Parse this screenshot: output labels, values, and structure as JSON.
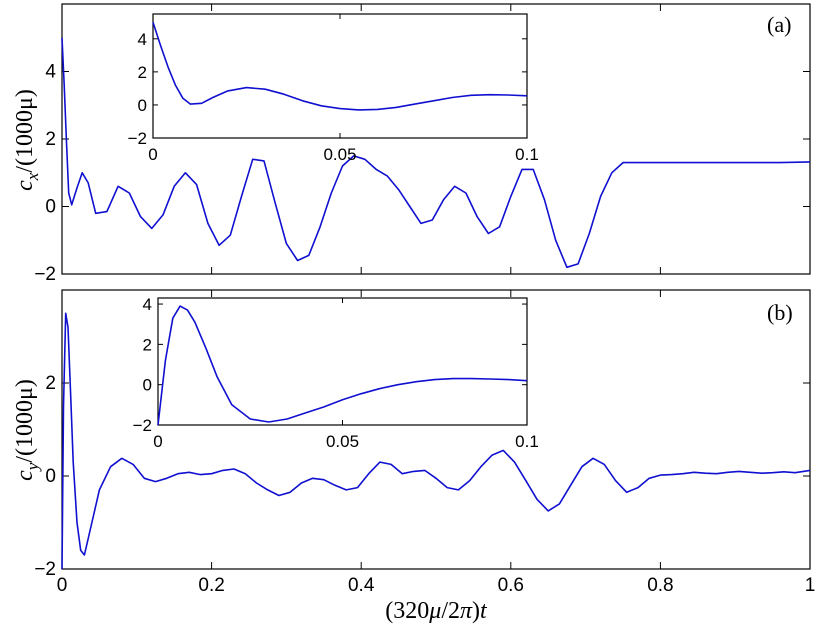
{
  "chart_data": [
    {
      "panel": "(a)",
      "type": "line",
      "ylabel_html": "c<tspan font-style='italic'>x</tspan>",
      "ylabel_parts": {
        "var": "c",
        "sub": "x",
        "rest": "/(1000μ)"
      },
      "xlim": [
        0,
        1
      ],
      "ylim": [
        -2,
        6
      ],
      "xticks": [
        0,
        0.2,
        0.4,
        0.6,
        0.8,
        1
      ],
      "yticks": [
        -2,
        0,
        2,
        4
      ],
      "ytick_labels": [
        "−2",
        "0",
        "2",
        "4"
      ],
      "x": [
        0,
        0.003,
        0.006,
        0.009,
        0.013,
        0.02,
        0.027,
        0.035,
        0.045,
        0.06,
        0.075,
        0.09,
        0.105,
        0.12,
        0.135,
        0.15,
        0.165,
        0.18,
        0.195,
        0.21,
        0.225,
        0.24,
        0.255,
        0.27,
        0.285,
        0.3,
        0.315,
        0.33,
        0.345,
        0.36,
        0.375,
        0.39,
        0.405,
        0.42,
        0.435,
        0.45,
        0.465,
        0.48,
        0.495,
        0.51,
        0.525,
        0.54,
        0.555,
        0.57,
        0.585,
        0.6,
        0.615,
        0.63,
        0.645,
        0.66,
        0.675,
        0.69,
        0.705,
        0.72,
        0.735,
        0.75,
        0.765,
        0.78,
        0.795,
        0.81,
        0.825,
        0.84,
        0.855,
        0.87,
        0.885,
        0.9,
        0.915,
        0.93,
        0.945,
        0.96,
        1.0
      ],
      "y": [
        5.0,
        3.6,
        1.9,
        0.4,
        0.05,
        0.55,
        1.0,
        0.7,
        -0.2,
        -0.15,
        0.6,
        0.4,
        -0.3,
        -0.65,
        -0.25,
        0.6,
        1.0,
        0.65,
        -0.5,
        -1.15,
        -0.85,
        0.3,
        1.4,
        1.35,
        0.1,
        -1.1,
        -1.6,
        -1.45,
        -0.6,
        0.4,
        1.2,
        1.5,
        1.4,
        1.1,
        0.9,
        0.5,
        0.0,
        -0.5,
        -0.4,
        0.2,
        0.6,
        0.4,
        -0.3,
        -0.8,
        -0.6,
        0.3,
        1.1,
        1.1,
        0.2,
        -1.0,
        -1.8,
        -1.7,
        -0.8,
        0.3,
        1.0,
        1.3,
        1.3,
        1.3,
        1.3,
        1.3,
        1.3,
        1.3,
        1.3,
        1.3,
        1.3,
        1.3,
        1.3,
        1.3,
        1.3,
        1.3,
        1.32
      ],
      "inset": {
        "xlim": [
          0,
          0.1
        ],
        "ylim": [
          -2,
          5.5
        ],
        "xticks": [
          0,
          0.05,
          0.1
        ],
        "xtick_labels": [
          "0",
          "0.05",
          "0.1"
        ],
        "yticks": [
          -2,
          0,
          2,
          4
        ],
        "ytick_labels": [
          "−2",
          "0",
          "2",
          "4"
        ],
        "x": [
          0,
          0.002,
          0.004,
          0.006,
          0.008,
          0.01,
          0.013,
          0.016,
          0.02,
          0.025,
          0.03,
          0.035,
          0.04,
          0.045,
          0.05,
          0.055,
          0.06,
          0.065,
          0.07,
          0.075,
          0.08,
          0.085,
          0.09,
          0.095,
          0.1
        ],
        "y": [
          5.0,
          3.6,
          2.3,
          1.2,
          0.4,
          0.05,
          0.1,
          0.45,
          0.85,
          1.05,
          0.95,
          0.65,
          0.25,
          -0.05,
          -0.22,
          -0.3,
          -0.27,
          -0.15,
          0.05,
          0.25,
          0.45,
          0.58,
          0.62,
          0.6,
          0.55
        ]
      }
    },
    {
      "panel": "(b)",
      "type": "line",
      "ylabel_parts": {
        "var": "c",
        "sub": "y",
        "rest": "/(1000μ)"
      },
      "xlim": [
        0,
        1
      ],
      "ylim": [
        -2,
        4
      ],
      "xticks": [
        0,
        0.2,
        0.4,
        0.6,
        0.8,
        1
      ],
      "xtick_labels": [
        "0",
        "0.2",
        "0.4",
        "0.6",
        "0.8",
        "1"
      ],
      "yticks": [
        -2,
        0,
        2
      ],
      "ytick_labels": [
        "−2",
        "0",
        "2"
      ],
      "x": [
        0,
        0.002,
        0.005,
        0.008,
        0.011,
        0.015,
        0.02,
        0.025,
        0.03,
        0.04,
        0.05,
        0.065,
        0.08,
        0.095,
        0.11,
        0.125,
        0.14,
        0.155,
        0.17,
        0.185,
        0.2,
        0.215,
        0.23,
        0.245,
        0.26,
        0.275,
        0.29,
        0.305,
        0.32,
        0.335,
        0.35,
        0.365,
        0.38,
        0.395,
        0.41,
        0.425,
        0.44,
        0.455,
        0.47,
        0.485,
        0.5,
        0.515,
        0.53,
        0.545,
        0.56,
        0.575,
        0.59,
        0.605,
        0.62,
        0.635,
        0.65,
        0.665,
        0.68,
        0.695,
        0.71,
        0.725,
        0.74,
        0.755,
        0.77,
        0.785,
        0.8,
        0.815,
        0.83,
        0.845,
        0.86,
        0.875,
        0.89,
        0.905,
        0.92,
        0.935,
        0.95,
        0.965,
        0.98,
        1.0
      ],
      "y": [
        -2.0,
        1.5,
        3.5,
        3.2,
        2.0,
        0.3,
        -1.0,
        -1.6,
        -1.7,
        -1.0,
        -0.3,
        0.2,
        0.38,
        0.25,
        -0.05,
        -0.12,
        -0.05,
        0.05,
        0.08,
        0.03,
        0.05,
        0.12,
        0.15,
        0.05,
        -0.15,
        -0.3,
        -0.42,
        -0.35,
        -0.15,
        -0.05,
        -0.08,
        -0.2,
        -0.3,
        -0.25,
        0.05,
        0.3,
        0.25,
        0.05,
        0.1,
        0.12,
        -0.05,
        -0.25,
        -0.3,
        -0.1,
        0.2,
        0.45,
        0.55,
        0.3,
        -0.1,
        -0.5,
        -0.75,
        -0.6,
        -0.2,
        0.2,
        0.38,
        0.25,
        -0.1,
        -0.35,
        -0.25,
        -0.05,
        0.02,
        0.03,
        0.05,
        0.08,
        0.06,
        0.05,
        0.08,
        0.1,
        0.08,
        0.06,
        0.07,
        0.09,
        0.07,
        0.12
      ],
      "inset": {
        "xlim": [
          0,
          0.1
        ],
        "ylim": [
          -2,
          4.3
        ],
        "xticks": [
          0,
          0.05,
          0.1
        ],
        "xtick_labels": [
          "0",
          "0.05",
          "0.1"
        ],
        "yticks": [
          -2,
          0,
          2,
          4
        ],
        "ytick_labels": [
          "−2",
          "0",
          "2",
          "4"
        ],
        "x": [
          0,
          0.002,
          0.004,
          0.006,
          0.008,
          0.01,
          0.013,
          0.016,
          0.02,
          0.025,
          0.03,
          0.035,
          0.04,
          0.045,
          0.05,
          0.055,
          0.06,
          0.065,
          0.07,
          0.075,
          0.08,
          0.085,
          0.09,
          0.095,
          0.1
        ],
        "y": [
          -2.0,
          1.2,
          3.3,
          3.9,
          3.7,
          3.1,
          1.8,
          0.4,
          -1.0,
          -1.7,
          -1.85,
          -1.7,
          -1.4,
          -1.1,
          -0.75,
          -0.45,
          -0.2,
          0.0,
          0.15,
          0.25,
          0.3,
          0.3,
          0.28,
          0.25,
          0.2
        ]
      }
    }
  ],
  "shared_xlabel_parts": {
    "pre": "(320",
    "mu": "μ",
    "mid": "/2",
    "pi": "π",
    "post": ")",
    "var": "t"
  }
}
